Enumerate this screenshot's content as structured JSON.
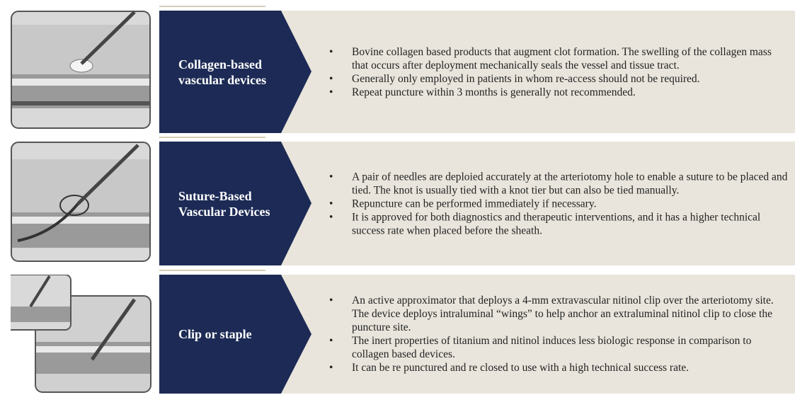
{
  "rows": [
    {
      "title": "Collagen-based vascular devices",
      "bullets": [
        "Bovine collagen based products that augment clot formation. The swelling of the collagen mass that occurs after deployment mechanically seals the vessel and tissue tract.",
        "Generally only employed in patients in whom re-access should not be required.",
        "Repeat puncture within 3 months is generally not recommended."
      ]
    },
    {
      "title": "Suture-Based Vascular Devices",
      "bullets": [
        "A pair of needles are deploied accurately at the arteriotomy hole to enable a suture to be placed and tied. The knot is usually tied with a knot tier but can also be tied manually.",
        "Repuncture can be performed immediately if necessary.",
        "It is approved for both diagnostics and therapeutic interventions, and it has a higher technical success rate when placed before the sheath."
      ]
    },
    {
      "title": "Clip or staple",
      "bullets": [
        "An active approximator that deploys a 4-mm extravascular nitinol clip over the arteriotomy site. The device deploys intraluminal “wings” to help anchor an extraluminal nitinol clip to close the puncture site.",
        "The inert properties of titanium and nitinol induces less biologic response in comparison to collagen based devices.",
        "It can be re punctured and re closed to use with a high technical success rate."
      ]
    }
  ]
}
